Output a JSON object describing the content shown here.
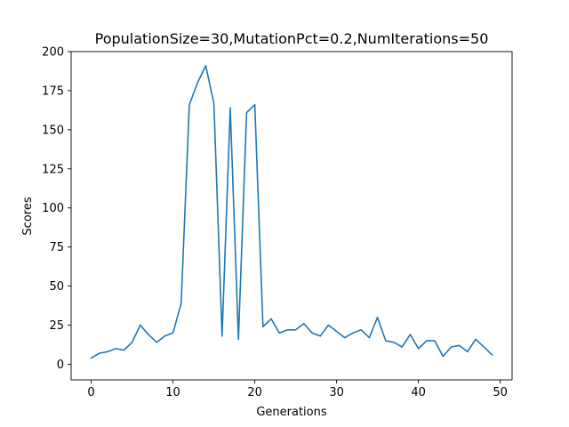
{
  "chart_data": {
    "type": "line",
    "title": "PopulationSize=30,MutationPct=0.2,NumIterations=50",
    "xlabel": "Generations",
    "ylabel": "Scores",
    "xlim": [
      -2.45,
      51.45
    ],
    "ylim": [
      -10,
      200
    ],
    "xticks": [
      0,
      10,
      20,
      30,
      40,
      50
    ],
    "yticks": [
      0,
      25,
      50,
      75,
      100,
      125,
      150,
      175,
      200
    ],
    "grid": false,
    "line_color": "#1f77b4",
    "series": [
      {
        "x": [
          0,
          1,
          2,
          3,
          4,
          5,
          6,
          7,
          8,
          9,
          10,
          11,
          12,
          13,
          14,
          15,
          16,
          17,
          18,
          19,
          20,
          21,
          22,
          23,
          24,
          25,
          26,
          27,
          28,
          29,
          30,
          31,
          32,
          33,
          34,
          35,
          36,
          37,
          38,
          39,
          40,
          41,
          42,
          43,
          44,
          45,
          46,
          47,
          48,
          49
        ],
        "values": [
          4,
          7,
          8,
          10,
          9,
          14,
          25,
          19,
          14,
          18,
          20,
          39,
          166,
          180,
          191,
          167,
          18,
          164,
          16,
          161,
          166,
          24,
          29,
          20,
          22,
          22,
          26,
          20,
          18,
          25,
          21,
          17,
          20,
          22,
          17,
          30,
          15,
          14,
          11,
          19,
          10,
          15,
          15,
          5,
          11,
          12,
          8,
          16,
          11,
          6
        ]
      }
    ]
  }
}
